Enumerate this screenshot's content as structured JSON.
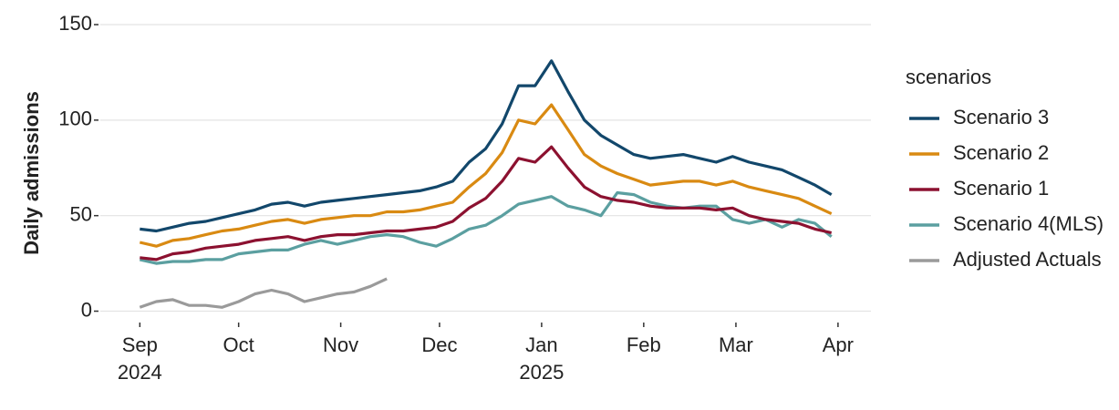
{
  "chart_data": {
    "type": "line",
    "y_label": "Daily admissions",
    "legend_title": "scenarios",
    "legend": "right",
    "grid": true,
    "x": [
      0,
      5,
      10,
      15,
      20,
      25,
      30,
      35,
      40,
      45,
      50,
      55,
      60,
      65,
      70,
      75,
      80,
      85,
      90,
      95,
      100,
      105,
      110,
      115,
      120,
      125,
      130,
      135,
      140,
      145,
      150,
      155,
      160,
      165,
      170,
      175,
      180,
      185,
      190,
      195,
      200,
      205,
      210
    ],
    "xlim": [
      -12,
      222
    ],
    "xticks": [
      {
        "value": 0,
        "label": "Sep\n2024"
      },
      {
        "value": 30,
        "label": "Oct"
      },
      {
        "value": 61,
        "label": "Nov"
      },
      {
        "value": 91,
        "label": "Dec"
      },
      {
        "value": 122,
        "label": "Jan\n2025"
      },
      {
        "value": 153,
        "label": "Feb"
      },
      {
        "value": 181,
        "label": "Mar"
      },
      {
        "value": 212,
        "label": "Apr"
      }
    ],
    "ylim": [
      -5,
      150
    ],
    "yticks": [
      0,
      50,
      100,
      150
    ],
    "series": [
      {
        "name": "Scenario 3",
        "color": "#12476b",
        "values": [
          43,
          42,
          44,
          46,
          47,
          49,
          51,
          53,
          56,
          57,
          55,
          57,
          58,
          59,
          60,
          61,
          62,
          63,
          65,
          68,
          78,
          85,
          98,
          118,
          118,
          131,
          115,
          100,
          92,
          87,
          82,
          80,
          81,
          82,
          80,
          78,
          81,
          78,
          76,
          74,
          70,
          66,
          61
        ]
      },
      {
        "name": "Scenario 2",
        "color": "#d98a12",
        "values": [
          36,
          34,
          37,
          38,
          40,
          42,
          43,
          45,
          47,
          48,
          46,
          48,
          49,
          50,
          50,
          52,
          52,
          53,
          55,
          57,
          65,
          72,
          83,
          100,
          98,
          108,
          95,
          82,
          76,
          72,
          69,
          66,
          67,
          68,
          68,
          66,
          68,
          65,
          63,
          61,
          59,
          55,
          51
        ]
      },
      {
        "name": "Scenario 1",
        "color": "#8c1130",
        "values": [
          28,
          27,
          30,
          31,
          33,
          34,
          35,
          37,
          38,
          39,
          37,
          39,
          40,
          40,
          41,
          42,
          42,
          43,
          44,
          47,
          54,
          59,
          68,
          80,
          78,
          86,
          75,
          65,
          60,
          58,
          57,
          55,
          54,
          54,
          54,
          53,
          54,
          50,
          48,
          47,
          46,
          43,
          41
        ]
      },
      {
        "name": "Scenario 4(MLS)",
        "color": "#5b9fa0",
        "values": [
          27,
          25,
          26,
          26,
          27,
          27,
          30,
          31,
          32,
          32,
          35,
          37,
          35,
          37,
          39,
          40,
          39,
          36,
          34,
          38,
          43,
          45,
          50,
          56,
          58,
          60,
          55,
          53,
          50,
          62,
          61,
          57,
          55,
          54,
          55,
          55,
          48,
          46,
          48,
          44,
          48,
          46,
          39
        ]
      },
      {
        "name": "Adjusted Actuals",
        "color": "#9a9a9a",
        "values": [
          2,
          5,
          6,
          3,
          3,
          2,
          5,
          9,
          11,
          9,
          5,
          7,
          9,
          10,
          13,
          17,
          null,
          null,
          null,
          null,
          null,
          null,
          null,
          null,
          null,
          null,
          null,
          null,
          null,
          null,
          null,
          null,
          null,
          null,
          null,
          null,
          null,
          null,
          null,
          null,
          null,
          null,
          null
        ]
      }
    ]
  }
}
